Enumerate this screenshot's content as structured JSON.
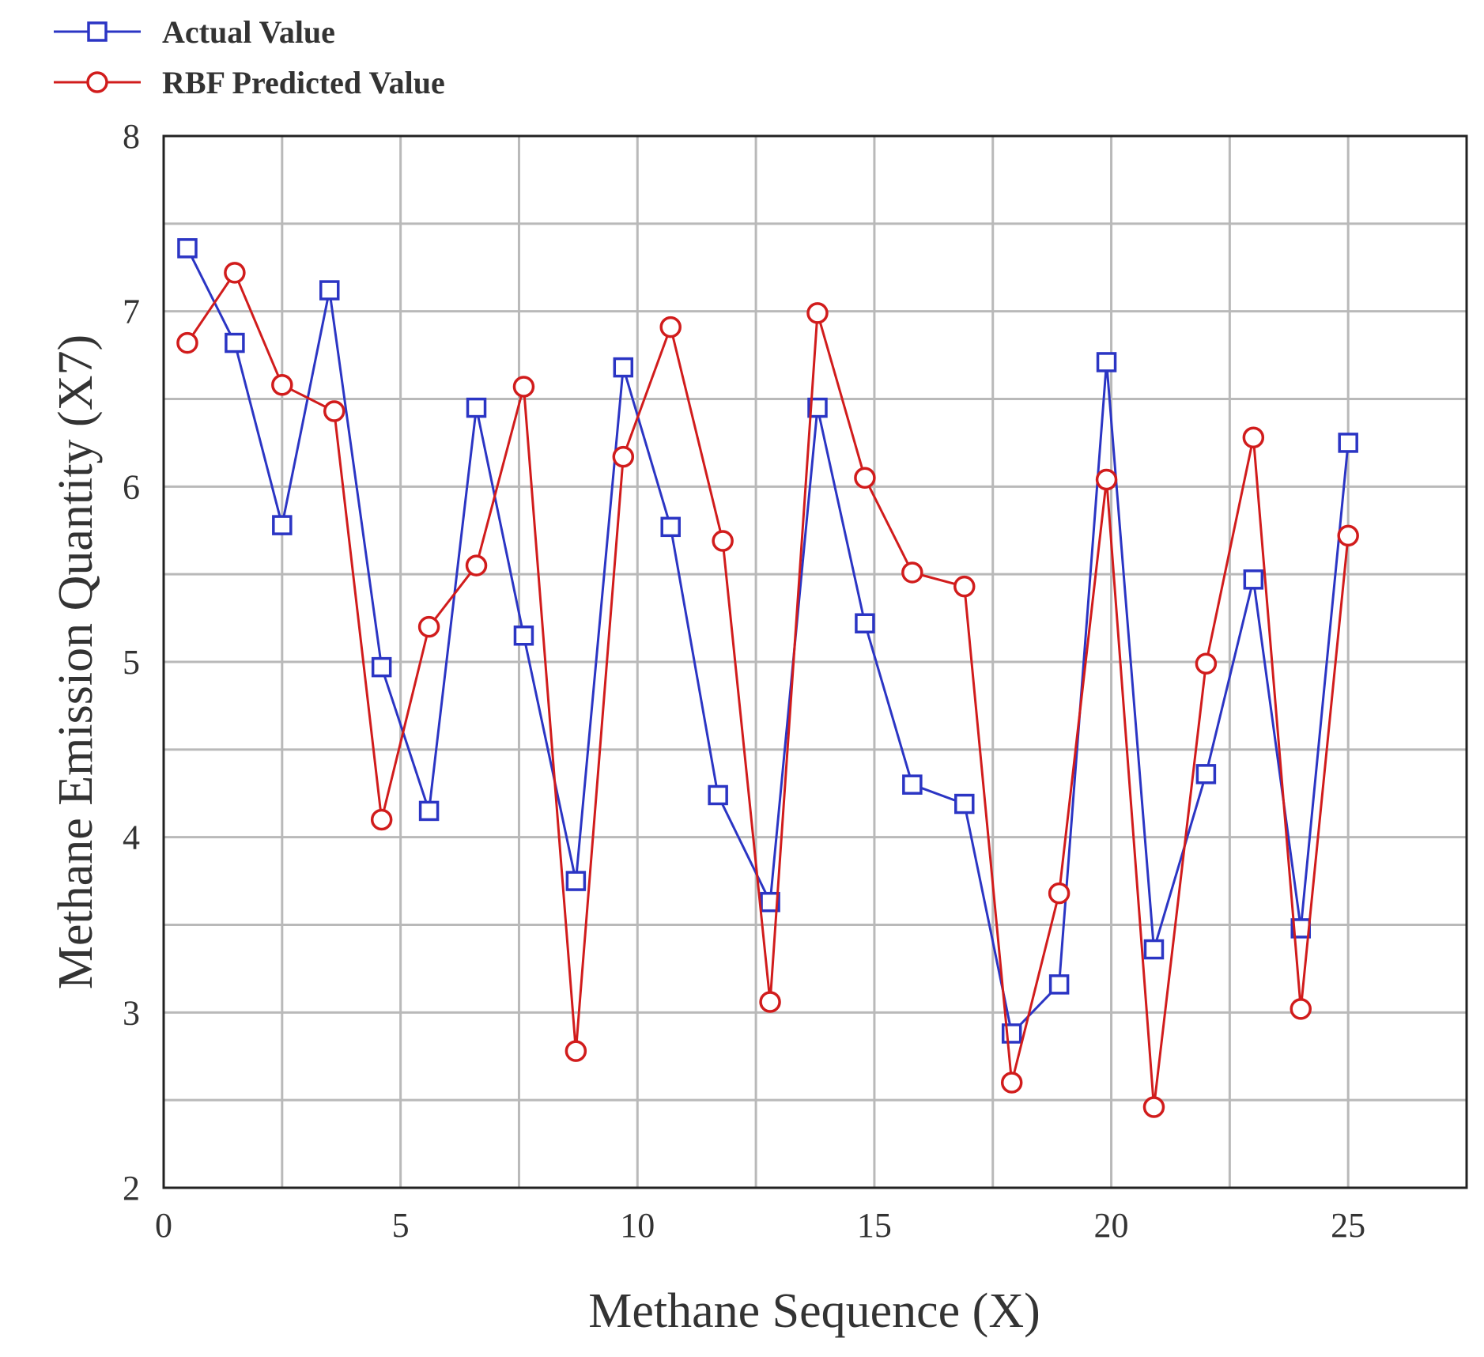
{
  "chart_data": {
    "type": "line",
    "title": "",
    "xlabel": "Methane Sequence (X)",
    "ylabel": "Methane Emission Quantity (X7)",
    "xlim": [
      0,
      27.5
    ],
    "ylim": [
      2,
      8
    ],
    "xticks": [
      0,
      5,
      10,
      15,
      20,
      25
    ],
    "yticks": [
      2,
      3,
      4,
      5,
      6,
      7,
      8
    ],
    "grid": true,
    "legend_position": "top-left outside plot",
    "series": [
      {
        "name": "Actual Value",
        "color": "#2b35c4",
        "marker": "square",
        "x": [
          0.5,
          1.5,
          2.5,
          3.5,
          4.6,
          5.6,
          6.6,
          7.6,
          8.7,
          9.7,
          10.7,
          11.7,
          12.8,
          13.8,
          14.8,
          15.8,
          16.9,
          17.9,
          18.9,
          19.9,
          20.9,
          22.0,
          23.0,
          24.0,
          25.0
        ],
        "values": [
          7.36,
          6.82,
          5.78,
          7.12,
          4.97,
          4.15,
          6.45,
          5.15,
          3.75,
          6.68,
          5.77,
          4.24,
          3.63,
          6.45,
          5.22,
          4.3,
          4.19,
          2.88,
          3.16,
          6.71,
          3.36,
          4.36,
          5.47,
          3.48,
          6.25
        ]
      },
      {
        "name": "RBF  Predicted Value",
        "color": "#d11c1c",
        "marker": "circle",
        "x": [
          0.5,
          1.5,
          2.5,
          3.6,
          4.6,
          5.6,
          6.6,
          7.6,
          8.7,
          9.7,
          10.7,
          11.8,
          12.8,
          13.8,
          14.8,
          15.8,
          16.9,
          17.9,
          18.9,
          19.9,
          20.9,
          22.0,
          23.0,
          24.0,
          25.0
        ],
        "values": [
          6.82,
          7.22,
          6.58,
          6.43,
          4.1,
          5.2,
          5.55,
          6.57,
          2.78,
          6.17,
          6.91,
          5.69,
          3.06,
          6.99,
          6.05,
          5.51,
          5.43,
          2.6,
          3.68,
          6.04,
          2.46,
          4.99,
          6.28,
          3.02,
          5.72
        ]
      }
    ]
  }
}
